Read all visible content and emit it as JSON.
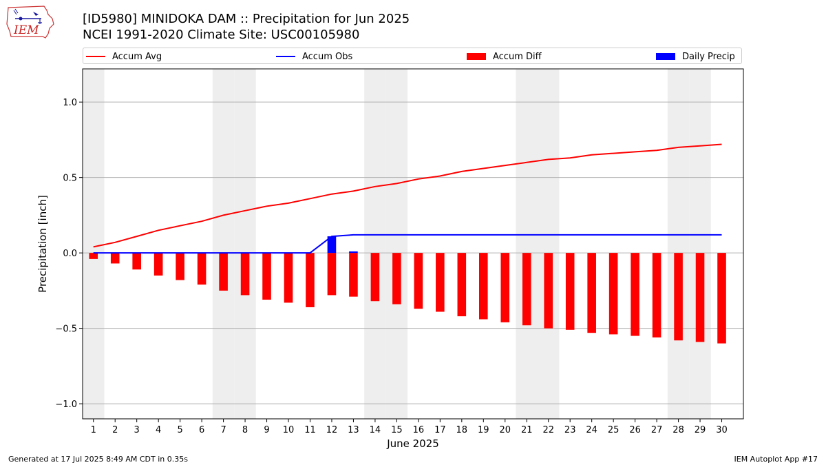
{
  "logo": {
    "text": "IEM"
  },
  "title": {
    "line1": "[ID5980] MINIDOKA DAM :: Precipitation for Jun 2025",
    "line2": "NCEI 1991-2020 Climate Site: USC00105980"
  },
  "legend": {
    "items": [
      {
        "label": "Accum Avg",
        "kind": "line",
        "color": "#ff0000"
      },
      {
        "label": "Accum Obs",
        "kind": "line",
        "color": "#0000ff"
      },
      {
        "label": "Accum Diff",
        "kind": "bar",
        "color": "#ff0000"
      },
      {
        "label": "Daily Precip",
        "kind": "bar",
        "color": "#0000ff"
      }
    ]
  },
  "footer": {
    "left": "Generated at 17 Jul 2025 8:49 AM CDT in 0.35s",
    "right": "IEM Autoplot App #17"
  },
  "chart_data": {
    "type": "bar",
    "xlabel": "June 2025",
    "ylabel": "Precipitation [inch]",
    "ylim": [
      -1.1,
      1.22
    ],
    "yticks": [
      -1.0,
      -0.5,
      0.0,
      0.5,
      1.0
    ],
    "ytick_labels": [
      "−1.0",
      "−0.5",
      "0.0",
      "0.5",
      "1.0"
    ],
    "grid": true,
    "legend_position": "top",
    "x": [
      1,
      2,
      3,
      4,
      5,
      6,
      7,
      8,
      9,
      10,
      11,
      12,
      13,
      14,
      15,
      16,
      17,
      18,
      19,
      20,
      21,
      22,
      23,
      24,
      25,
      26,
      27,
      28,
      29,
      30
    ],
    "weekend_days": [
      1,
      7,
      8,
      14,
      15,
      21,
      22,
      28,
      29
    ],
    "series": [
      {
        "name": "Accum Avg",
        "type": "line",
        "color": "#ff0000",
        "values": [
          0.04,
          0.07,
          0.11,
          0.15,
          0.18,
          0.21,
          0.25,
          0.28,
          0.31,
          0.33,
          0.36,
          0.39,
          0.41,
          0.44,
          0.46,
          0.49,
          0.51,
          0.54,
          0.56,
          0.58,
          0.6,
          0.62,
          0.63,
          0.65,
          0.66,
          0.67,
          0.68,
          0.7,
          0.71,
          0.72
        ]
      },
      {
        "name": "Accum Obs",
        "type": "line",
        "color": "#0000ff",
        "values": [
          0,
          0,
          0,
          0,
          0,
          0,
          0,
          0,
          0,
          0,
          0,
          0.11,
          0.12,
          0.12,
          0.12,
          0.12,
          0.12,
          0.12,
          0.12,
          0.12,
          0.12,
          0.12,
          0.12,
          0.12,
          0.12,
          0.12,
          0.12,
          0.12,
          0.12,
          0.12
        ]
      },
      {
        "name": "Accum Diff",
        "type": "bar",
        "color": "#ff0000",
        "values": [
          -0.04,
          -0.07,
          -0.11,
          -0.15,
          -0.18,
          -0.21,
          -0.25,
          -0.28,
          -0.31,
          -0.33,
          -0.36,
          -0.28,
          -0.29,
          -0.32,
          -0.34,
          -0.37,
          -0.39,
          -0.42,
          -0.44,
          -0.46,
          -0.48,
          -0.5,
          -0.51,
          -0.53,
          -0.54,
          -0.55,
          -0.56,
          -0.58,
          -0.59,
          -0.6
        ]
      },
      {
        "name": "Daily Precip",
        "type": "bar",
        "color": "#0000ff",
        "values": [
          0,
          0,
          0,
          0,
          0,
          0,
          0,
          0,
          0,
          0,
          0,
          0.11,
          0.01,
          0,
          0,
          0,
          0,
          0,
          0,
          0,
          0,
          0,
          0,
          0,
          0,
          0,
          0,
          0,
          0,
          0
        ]
      }
    ]
  }
}
